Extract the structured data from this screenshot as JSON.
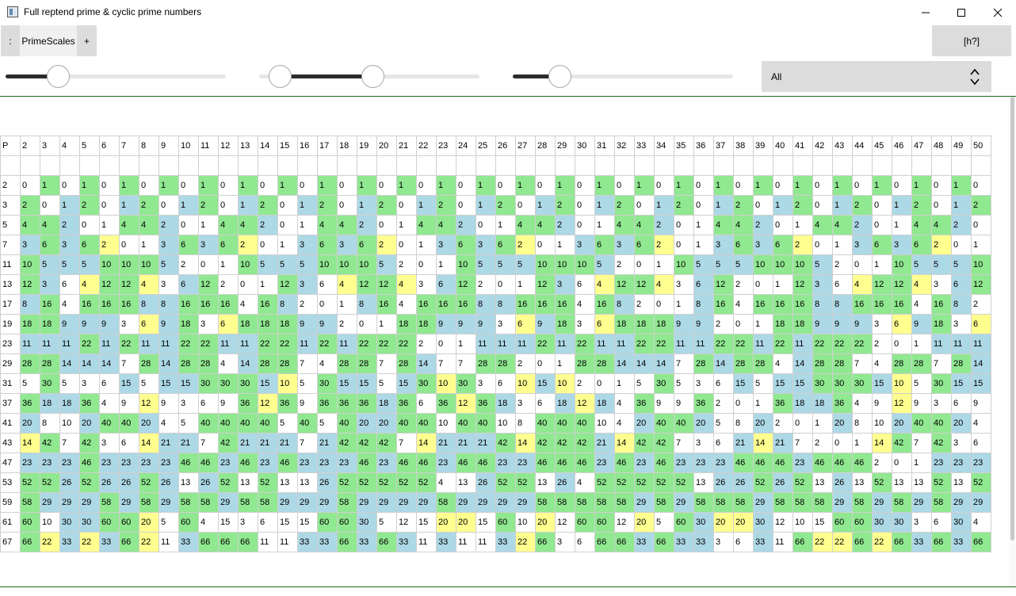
{
  "window": {
    "title": "Full reptend prime & cyclic prime numbers"
  },
  "tabs": {
    "menu_label": ":",
    "active_tab": "PrimeScales",
    "add_label": "+"
  },
  "help": {
    "label": "[h?]"
  },
  "sliders": [
    {
      "name": "slider-1",
      "value_fraction": 0.21
    },
    {
      "name": "slider-2",
      "range_fraction": [
        0.05,
        0.52
      ]
    },
    {
      "name": "slider-3",
      "value_fraction": 0.18
    }
  ],
  "filter": {
    "selected": "All"
  },
  "colors": {
    "green": "#90e890",
    "blue": "#add8e6",
    "yellow": "#ffff90",
    "white": "#ffffff",
    "panel_border": "#1a6b1a"
  },
  "legend_codes": {
    "G": "green",
    "B": "blue",
    "Y": "yellow",
    "W": "white"
  },
  "table": {
    "corner": "P",
    "bases": [
      2,
      3,
      4,
      5,
      6,
      7,
      8,
      9,
      10,
      11,
      12,
      13,
      14,
      15,
      16,
      17,
      18,
      19,
      20,
      21,
      22,
      23,
      24,
      25,
      26,
      27,
      28,
      29,
      30,
      31,
      32,
      33,
      34,
      35,
      36,
      37,
      38,
      39,
      40,
      41,
      42,
      43,
      44,
      45,
      46,
      47,
      48,
      49,
      50
    ],
    "rows": [
      {
        "p": "2",
        "values": [
          0,
          1,
          0,
          1,
          0,
          1,
          0,
          1,
          0,
          1,
          0,
          1,
          0,
          1,
          0,
          1,
          0,
          1,
          0,
          1,
          0,
          1,
          0,
          1,
          0,
          1,
          0,
          1,
          0,
          1,
          0,
          1,
          0,
          1,
          0,
          1,
          0,
          1,
          0,
          1,
          0,
          1,
          0,
          1,
          0,
          1,
          0,
          1,
          0
        ],
        "colors": "WGWGWGWGWGWGWGWGWGWGWGWGWGWGWGWGWGWGWGWGWGWGWGWGW"
      },
      {
        "p": "3",
        "values": [
          2,
          0,
          1,
          2,
          0,
          1,
          2,
          0,
          1,
          2,
          0,
          1,
          2,
          0,
          1,
          2,
          0,
          1,
          2,
          0,
          1,
          2,
          0,
          1,
          2,
          0,
          1,
          2,
          0,
          1,
          2,
          0,
          1,
          2,
          0,
          1,
          2,
          0,
          1,
          2,
          0,
          1,
          2,
          0,
          1,
          2,
          0,
          1,
          2
        ],
        "colors": "GWBGWBGWBGWBGWBGWBGWBGWBGWBGWBGWBGWBGWBGWBGWBGWBG"
      },
      {
        "p": "5",
        "values": [
          4,
          4,
          2,
          0,
          1,
          4,
          4,
          2,
          0,
          1,
          4,
          4,
          2,
          0,
          1,
          4,
          4,
          2,
          0,
          1,
          4,
          4,
          2,
          0,
          1,
          4,
          4,
          2,
          0,
          1,
          4,
          4,
          2,
          0,
          1,
          4,
          4,
          2,
          0,
          1,
          4,
          4,
          2,
          0,
          1,
          4,
          4,
          2,
          0
        ],
        "colors": "GGBWWGGBWWGGBWWGGBWWGGBWWGGBWWGGBWWGGBWWGGBWWGGBW"
      },
      {
        "p": "7",
        "values": [
          3,
          6,
          3,
          6,
          2,
          0,
          1,
          3,
          6,
          3,
          6,
          2,
          0,
          1,
          3,
          6,
          3,
          6,
          2,
          0,
          1,
          3,
          6,
          3,
          6,
          2,
          0,
          1,
          3,
          6,
          3,
          6,
          2,
          0,
          1,
          3,
          6,
          3,
          6,
          2,
          0,
          1,
          3,
          6,
          3,
          6,
          2,
          0,
          1
        ],
        "colors": "BGBGYWWBGBGYWWBGBGYWWBGBGYWWBGBGYWWBGBGYWWBGBGYWW"
      },
      {
        "p": "11",
        "values": [
          10,
          5,
          5,
          5,
          10,
          10,
          10,
          5,
          2,
          0,
          1,
          10,
          5,
          5,
          5,
          10,
          10,
          10,
          5,
          2,
          0,
          1,
          10,
          5,
          5,
          5,
          10,
          10,
          10,
          5,
          2,
          0,
          1,
          10,
          5,
          5,
          5,
          10,
          10,
          10,
          5,
          2,
          0,
          1,
          10,
          5,
          5,
          5,
          10
        ],
        "colors": "GBBBGGGBWWWGBBBGGGBWWWGBBBGGGBWWWGBBBGGGBWWWGBBBG"
      },
      {
        "p": "13",
        "values": [
          12,
          3,
          6,
          4,
          12,
          12,
          4,
          3,
          6,
          12,
          2,
          0,
          1,
          12,
          3,
          6,
          4,
          12,
          12,
          4,
          3,
          6,
          12,
          2,
          0,
          1,
          12,
          3,
          6,
          4,
          12,
          12,
          4,
          3,
          6,
          12,
          2,
          0,
          1,
          12,
          3,
          6,
          4,
          12,
          12,
          4,
          3,
          6,
          12
        ],
        "colors": "GBWYGGYWBGWWWGBWYGGYWBGWWWGBWYGGYWBGWWWGBWYGGYWBG"
      },
      {
        "p": "17",
        "values": [
          8,
          16,
          4,
          16,
          16,
          16,
          8,
          8,
          16,
          16,
          16,
          4,
          16,
          8,
          2,
          0,
          1,
          8,
          16,
          4,
          16,
          16,
          16,
          8,
          8,
          16,
          16,
          16,
          4,
          16,
          8,
          2,
          0,
          1,
          8,
          16,
          4,
          16,
          16,
          16,
          8,
          8,
          16,
          16,
          16,
          4,
          16,
          8,
          2
        ],
        "colors": "BGWGGGBBGGGWGBWWWBGWGGGBBGGGWGBWWWBGWGGGBBGGGWGBW"
      },
      {
        "p": "19",
        "values": [
          18,
          18,
          9,
          9,
          9,
          3,
          6,
          9,
          18,
          3,
          6,
          18,
          18,
          18,
          9,
          9,
          2,
          0,
          1,
          18,
          18,
          9,
          9,
          9,
          3,
          6,
          9,
          18,
          3,
          6,
          18,
          18,
          18,
          9,
          9,
          2,
          0,
          1,
          18,
          18,
          9,
          9,
          9,
          3,
          6,
          9,
          18,
          3,
          6
        ],
        "colors": "GGBBBWYBGWYGGGBBWWWGGBBBWYBGWYGGGBBWWWGGBBBWYBGWY"
      },
      {
        "p": "23",
        "values": [
          11,
          11,
          11,
          22,
          11,
          22,
          11,
          11,
          22,
          22,
          11,
          11,
          22,
          22,
          11,
          22,
          11,
          22,
          22,
          22,
          2,
          0,
          1,
          11,
          11,
          11,
          22,
          11,
          22,
          11,
          11,
          22,
          22,
          11,
          11,
          22,
          22,
          11,
          22,
          11,
          22,
          22,
          22,
          2,
          0,
          1,
          11,
          11,
          11
        ],
        "colors": "BBBGBGBBGGBBGGBGBGGGWWWBBBGBGBBGGBBGGBGBGGGWWWBBB"
      },
      {
        "p": "29",
        "values": [
          28,
          28,
          14,
          14,
          14,
          7,
          28,
          14,
          28,
          28,
          4,
          14,
          28,
          28,
          7,
          4,
          28,
          28,
          7,
          28,
          14,
          7,
          7,
          28,
          28,
          2,
          0,
          1,
          28,
          28,
          14,
          14,
          14,
          7,
          28,
          14,
          28,
          28,
          4,
          14,
          28,
          28,
          7,
          4,
          28,
          28,
          7,
          28,
          14
        ],
        "colors": "GGBBBWGBGGWBGGWWGGWGBWWGGWWWGGBBBWGBGGWBGGWWGGWGB"
      },
      {
        "p": "31",
        "values": [
          5,
          30,
          5,
          3,
          6,
          15,
          5,
          15,
          15,
          30,
          30,
          30,
          15,
          10,
          5,
          30,
          15,
          15,
          5,
          15,
          30,
          10,
          30,
          3,
          6,
          10,
          15,
          10,
          2,
          0,
          1,
          5,
          30,
          5,
          3,
          6,
          15,
          5,
          15,
          15,
          30,
          30,
          30,
          15,
          10,
          5,
          30,
          15,
          15
        ],
        "colors": "WGWWWBWBBGGGBYWGBBWBGYGWWYBYWWWWGWWWBWBBGGGBYWGBB"
      },
      {
        "p": "37",
        "values": [
          36,
          18,
          18,
          36,
          4,
          9,
          12,
          9,
          3,
          6,
          9,
          36,
          12,
          36,
          9,
          36,
          36,
          36,
          18,
          36,
          6,
          36,
          12,
          36,
          18,
          3,
          6,
          18,
          12,
          18,
          4,
          36,
          9,
          9,
          36,
          2,
          0,
          1,
          36,
          18,
          18,
          36,
          4,
          9,
          12,
          9,
          3,
          6,
          9
        ],
        "colors": "GBBGWWYWWWWGYGWGGGBGWGYGBWWBYBWGWWGWWWGBBGWWYWWWW"
      },
      {
        "p": "41",
        "values": [
          20,
          8,
          10,
          20,
          40,
          40,
          20,
          4,
          5,
          40,
          40,
          40,
          40,
          5,
          40,
          5,
          40,
          20,
          20,
          40,
          40,
          10,
          40,
          40,
          10,
          8,
          40,
          40,
          40,
          10,
          4,
          20,
          40,
          40,
          20,
          5,
          8,
          20,
          2,
          0,
          1,
          20,
          8,
          10,
          20,
          40,
          40,
          20,
          4
        ],
        "colors": "BWWBGGBWWGGGGWGWGBBGGWGGWWGGGWWBGGBWWBWWWBWWBGGBW"
      },
      {
        "p": "43",
        "values": [
          14,
          42,
          7,
          42,
          3,
          6,
          14,
          21,
          21,
          7,
          42,
          21,
          21,
          21,
          7,
          21,
          42,
          42,
          42,
          7,
          14,
          21,
          21,
          21,
          42,
          14,
          42,
          42,
          42,
          21,
          14,
          42,
          42,
          7,
          3,
          6,
          21,
          14,
          21,
          7,
          2,
          0,
          1,
          14,
          42,
          7,
          42,
          3,
          6
        ],
        "colors": "YGWGWWYBBWGBBBWBGGGWYBBBGYGGGBYGGWWWBYBWWWWYGWGWW"
      },
      {
        "p": "47",
        "values": [
          23,
          23,
          23,
          46,
          23,
          23,
          23,
          23,
          46,
          46,
          23,
          46,
          23,
          46,
          23,
          23,
          23,
          46,
          23,
          46,
          46,
          23,
          46,
          46,
          23,
          23,
          46,
          46,
          46,
          23,
          46,
          23,
          46,
          23,
          23,
          23,
          46,
          46,
          46,
          23,
          46,
          46,
          46,
          2,
          0,
          1,
          23,
          23,
          23
        ],
        "colors": "BBBGBBBBGGBGBGBBBGBGGBGGBBGGGBGBGBBBGGGBGGGWWWBBB"
      },
      {
        "p": "53",
        "values": [
          52,
          52,
          26,
          52,
          26,
          26,
          52,
          26,
          13,
          26,
          52,
          13,
          52,
          13,
          13,
          26,
          52,
          52,
          52,
          52,
          52,
          4,
          13,
          26,
          52,
          52,
          13,
          26,
          4,
          52,
          52,
          52,
          52,
          52,
          13,
          26,
          26,
          52,
          26,
          52,
          13,
          26,
          13,
          52,
          13,
          13,
          52,
          13,
          52
        ],
        "colors": "GGBGBBGBWBGWGWWBGGGGGWWBGGWBWGGGGGWBBGBGWBWGWWGWG"
      },
      {
        "p": "59",
        "values": [
          58,
          29,
          29,
          29,
          58,
          29,
          58,
          29,
          58,
          58,
          29,
          58,
          58,
          29,
          29,
          29,
          58,
          29,
          29,
          29,
          29,
          58,
          29,
          29,
          29,
          29,
          58,
          58,
          58,
          58,
          58,
          29,
          58,
          29,
          58,
          58,
          58,
          29,
          58,
          58,
          58,
          29,
          58,
          29,
          58,
          29,
          58,
          29,
          29
        ],
        "colors": "GBBBGBGBGGBGGBBBGBBBBGBBBBGGGGGBGBGGGBGGGBGBGBGBB"
      },
      {
        "p": "61",
        "values": [
          60,
          10,
          30,
          30,
          60,
          60,
          20,
          5,
          60,
          4,
          15,
          3,
          6,
          15,
          15,
          60,
          60,
          30,
          5,
          12,
          15,
          20,
          20,
          15,
          60,
          10,
          20,
          12,
          60,
          60,
          12,
          20,
          5,
          60,
          30,
          20,
          20,
          30,
          12,
          10,
          15,
          60,
          60,
          30,
          30,
          3,
          6,
          30,
          4
        ],
        "colors": "GWBBGGYWGWWWWWWGGBWWWYYWGWYWGGWYWGBYYBWWWGGBBWWBW"
      },
      {
        "p": "67",
        "values": [
          66,
          22,
          33,
          22,
          33,
          66,
          22,
          11,
          33,
          66,
          66,
          66,
          11,
          11,
          33,
          33,
          66,
          33,
          66,
          33,
          11,
          33,
          11,
          11,
          33,
          22,
          66,
          3,
          6,
          66,
          66,
          33,
          66,
          33,
          33,
          3,
          6,
          33,
          11,
          66,
          22,
          22,
          66,
          22,
          66,
          33,
          66,
          33,
          66
        ],
        "colors": "GYBYBGYWBGGGWWBBGBGBWBWWBYGWWGGBGBBWWBWGYYGYGBGBG"
      }
    ]
  }
}
